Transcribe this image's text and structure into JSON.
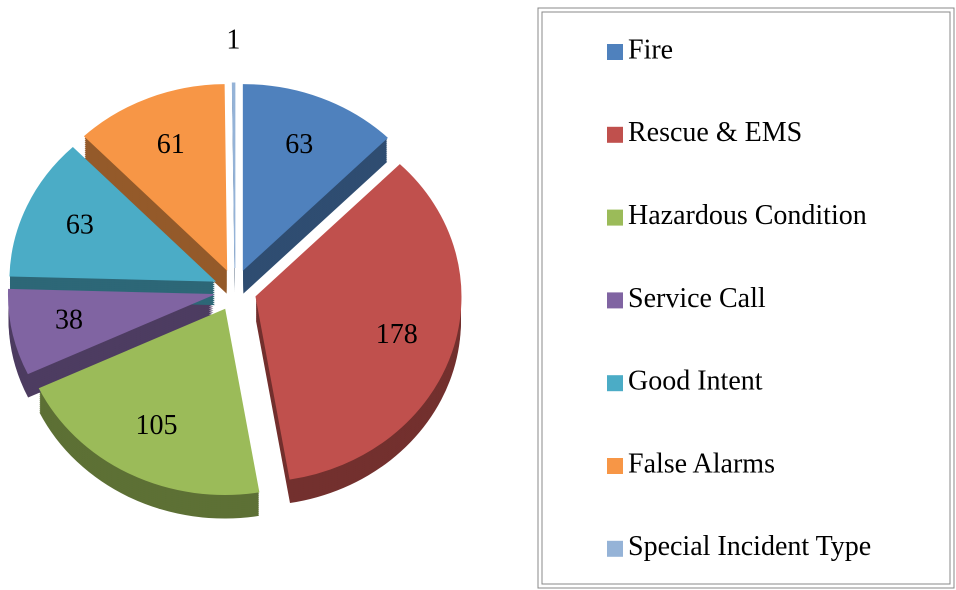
{
  "chart_data": {
    "type": "pie",
    "categories": [
      "Fire",
      "Rescue & EMS",
      "Hazardous Condition",
      "Service Call",
      "Good Intent",
      "False Alarms",
      "Special Incident Type"
    ],
    "values": [
      63,
      178,
      105,
      38,
      63,
      61,
      1
    ],
    "colors": [
      "#4f81bd",
      "#c0504d",
      "#9bbb59",
      "#8064a2",
      "#4bacc6",
      "#f79646",
      "#95b3d7"
    ]
  }
}
